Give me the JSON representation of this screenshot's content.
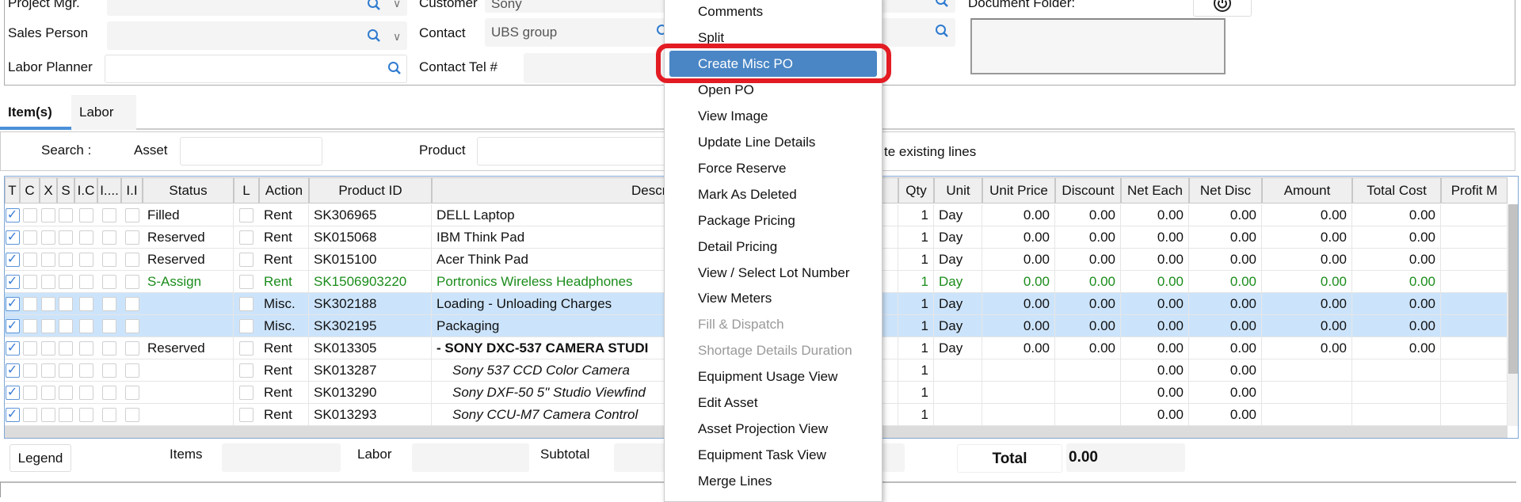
{
  "form": {
    "project_mgr_label": "Project Mgr.",
    "sales_person_label": "Sales Person",
    "labor_planner_label": "Labor Planner",
    "customer_label": "Customer",
    "customer_value": "Sony",
    "contact_label": "Contact",
    "contact_value": "UBS group",
    "contact_tel_label": "Contact Tel #",
    "document_folder_label": "Document Folder:"
  },
  "tabs": [
    {
      "label": "Item(s)",
      "active": true
    },
    {
      "label": "Labor",
      "active": false
    }
  ],
  "search": {
    "label": "Search :",
    "asset_label": "Asset",
    "product_label": "Product",
    "update_lines_label": "te existing lines"
  },
  "columns": [
    "T",
    "C",
    "X",
    "S",
    "I.C",
    "I....",
    "I.I",
    "Status",
    "L",
    "Action",
    "Product ID",
    "Description",
    "Qty",
    "Unit",
    "Unit Price",
    "Discount",
    "Net Each",
    "Net Disc",
    "Amount",
    "Total Cost",
    "Profit M"
  ],
  "rows": [
    {
      "style": "normal",
      "status": "Filled",
      "action": "Rent",
      "product_id": "SK306965",
      "description": "DELL Laptop",
      "qty": "1",
      "unit": "Day",
      "unit_price": "0.00",
      "discount": "0.00",
      "net_each": "0.00",
      "net_disc": "0.00",
      "amount": "0.00",
      "total_cost": "0.00"
    },
    {
      "style": "normal",
      "status": "Reserved",
      "action": "Rent",
      "product_id": "SK015068",
      "description": "IBM Think Pad",
      "qty": "1",
      "unit": "Day",
      "unit_price": "0.00",
      "discount": "0.00",
      "net_each": "0.00",
      "net_disc": "0.00",
      "amount": "0.00",
      "total_cost": "0.00"
    },
    {
      "style": "normal",
      "status": "Reserved",
      "action": "Rent",
      "product_id": "SK015100",
      "description": "Acer Think Pad",
      "qty": "1",
      "unit": "Day",
      "unit_price": "0.00",
      "discount": "0.00",
      "net_each": "0.00",
      "net_disc": "0.00",
      "amount": "0.00",
      "total_cost": "0.00"
    },
    {
      "style": "green",
      "status": "S-Assign",
      "action": "Rent",
      "product_id": "SK1506903220",
      "description": "Portronics Wireless Headphones",
      "qty": "1",
      "unit": "Day",
      "unit_price": "0.00",
      "discount": "0.00",
      "net_each": "0.00",
      "net_disc": "0.00",
      "amount": "0.00",
      "total_cost": "0.00"
    },
    {
      "style": "selected",
      "status": "",
      "action": "Misc.",
      "product_id": "SK302188",
      "description": "Loading - Unloading Charges",
      "qty": "1",
      "unit": "Day",
      "unit_price": "0.00",
      "discount": "0.00",
      "net_each": "0.00",
      "net_disc": "0.00",
      "amount": "0.00",
      "total_cost": "0.00"
    },
    {
      "style": "selected",
      "status": "",
      "action": "Misc.",
      "product_id": "SK302195",
      "description": "Packaging",
      "qty": "1",
      "unit": "Day",
      "unit_price": "0.00",
      "discount": "0.00",
      "net_each": "0.00",
      "net_disc": "0.00",
      "amount": "0.00",
      "total_cost": "0.00"
    },
    {
      "style": "bold",
      "status": "Reserved",
      "action": "Rent",
      "product_id": "SK013305",
      "description": "- SONY DXC-537 CAMERA STUDI",
      "qty": "1",
      "unit": "Day",
      "unit_price": "0.00",
      "discount": "0.00",
      "net_each": "0.00",
      "net_disc": "0.00",
      "amount": "0.00",
      "total_cost": "0.00"
    },
    {
      "style": "italic",
      "status": "",
      "action": "Rent",
      "product_id": "SK013287",
      "description": "Sony 537 CCD Color Camera",
      "qty": "1",
      "unit": "",
      "unit_price": "",
      "discount": "",
      "net_each": "0.00",
      "net_disc": "0.00",
      "amount": "",
      "total_cost": ""
    },
    {
      "style": "italic",
      "status": "",
      "action": "Rent",
      "product_id": "SK013290",
      "description": "Sony DXF-50 5\" Studio Viewfind",
      "qty": "1",
      "unit": "",
      "unit_price": "",
      "discount": "",
      "net_each": "0.00",
      "net_disc": "0.00",
      "amount": "",
      "total_cost": ""
    },
    {
      "style": "italic",
      "status": "",
      "action": "Rent",
      "product_id": "SK013293",
      "description": "Sony CCU-M7 Camera Control",
      "qty": "1",
      "unit": "",
      "unit_price": "",
      "discount": "",
      "net_each": "0.00",
      "net_disc": "0.00",
      "amount": "",
      "total_cost": ""
    }
  ],
  "footer": {
    "legend_label": "Legend",
    "items_label": "Items",
    "labor_label": "Labor",
    "subtotal_label": "Subtotal",
    "total_label": "Total",
    "total_value": "0.00"
  },
  "context_menu": {
    "items": [
      {
        "label": "Comments",
        "enabled": true
      },
      {
        "label": "Split",
        "enabled": true
      },
      {
        "label": "Create Misc PO",
        "enabled": true,
        "highlighted": true
      },
      {
        "label": "Open PO",
        "enabled": true
      },
      {
        "label": "View Image",
        "enabled": true
      },
      {
        "label": "Update Line Details",
        "enabled": true
      },
      {
        "label": "Force Reserve",
        "enabled": true
      },
      {
        "label": "Mark As Deleted",
        "enabled": true
      },
      {
        "label": "Package Pricing",
        "enabled": true
      },
      {
        "label": "Detail Pricing",
        "enabled": true
      },
      {
        "label": "View / Select Lot Number",
        "enabled": true
      },
      {
        "label": "View Meters",
        "enabled": true
      },
      {
        "label": "Fill & Dispatch",
        "enabled": false
      },
      {
        "label": "Shortage Details Duration",
        "enabled": false
      },
      {
        "label": "Equipment Usage View",
        "enabled": true
      },
      {
        "label": "Edit Asset",
        "enabled": true
      },
      {
        "label": "Asset Projection View",
        "enabled": true
      },
      {
        "label": "Equipment Task View",
        "enabled": true
      },
      {
        "label": "Merge Lines",
        "enabled": true
      }
    ]
  },
  "colors": {
    "accent": "#4a86c5",
    "highlight_ring": "#e31b23",
    "selected_row": "#cce4fb",
    "green_text": "#1b8c1b",
    "check": "#3a7bd5"
  }
}
